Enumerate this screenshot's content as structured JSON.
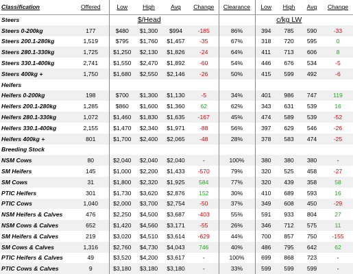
{
  "header": [
    "Classification",
    "Offered",
    "Low",
    "High",
    "Avg",
    "Change",
    "Clearance",
    "Low",
    "High",
    "Avg",
    "Change"
  ],
  "units": [
    "$/Head",
    "c/kg LW"
  ],
  "sections": [
    {
      "title": "Steers",
      "rows": [
        [
          "Steers 0-200kg",
          "177",
          "$480",
          "$1,300",
          "$994",
          "-185",
          "86%",
          "394",
          "785",
          "590",
          "-33"
        ],
        [
          "Steers 200.1-280kg",
          "1,519",
          "$795",
          "$1,760",
          "$1,457",
          "-35",
          "67%",
          "318",
          "720",
          "595",
          "0"
        ],
        [
          "Steers 280.1-330kg",
          "1,725",
          "$1,250",
          "$2,130",
          "$1,826",
          "-24",
          "64%",
          "411",
          "713",
          "606",
          "8"
        ],
        [
          "Steers 330.1-400kg",
          "2,741",
          "$1,550",
          "$2,470",
          "$1,892",
          "-60",
          "54%",
          "446",
          "676",
          "534",
          "-5"
        ],
        [
          "Steers 400kg +",
          "1,750",
          "$1,680",
          "$2,550",
          "$2,146",
          "-26",
          "50%",
          "415",
          "599",
          "492",
          "-6"
        ]
      ]
    },
    {
      "title": "Heifers",
      "rows": [
        [
          "Heifers 0-200kg",
          "198",
          "$700",
          "$1,300",
          "$1,130",
          "-5",
          "34%",
          "401",
          "986",
          "747",
          "119"
        ],
        [
          "Heifers 200.1-280kg",
          "1,285",
          "$860",
          "$1,600",
          "$1,360",
          "62",
          "62%",
          "343",
          "631",
          "539",
          "16"
        ],
        [
          "Heifers 280.1-330kg",
          "1,072",
          "$1,460",
          "$1,830",
          "$1,635",
          "-167",
          "45%",
          "474",
          "589",
          "539",
          "-52"
        ],
        [
          "Heifers 330.1-400kg",
          "2,155",
          "$1,470",
          "$2,340",
          "$1,971",
          "-88",
          "56%",
          "397",
          "629",
          "546",
          "-26"
        ],
        [
          "Heifers 400kg +",
          "801",
          "$1,700",
          "$2,400",
          "$2,065",
          "-48",
          "28%",
          "378",
          "583",
          "474",
          "-25"
        ]
      ]
    },
    {
      "title": "Breeding Stock",
      "rows": [
        [
          "NSM Cows",
          "80",
          "$2,040",
          "$2,040",
          "$2,040",
          "-",
          "100%",
          "380",
          "380",
          "380",
          "-"
        ],
        [
          "SM Heifers",
          "145",
          "$1,000",
          "$2,200",
          "$1,433",
          "-570",
          "79%",
          "320",
          "525",
          "458",
          "-27"
        ],
        [
          "SM Cows",
          "31",
          "$1,800",
          "$2,320",
          "$1,925",
          "584",
          "77%",
          "320",
          "439",
          "358",
          "58"
        ],
        [
          "PTIC Heifers",
          "301",
          "$1,730",
          "$3,620",
          "$2,876",
          "152",
          "30%",
          "410",
          "689",
          "593",
          "16"
        ],
        [
          "PTIC Cows",
          "1,040",
          "$2,000",
          "$3,700",
          "$2,754",
          "-50",
          "37%",
          "349",
          "608",
          "450",
          "-29"
        ],
        [
          "NSM Heifers & Calves",
          "476",
          "$2,250",
          "$4,500",
          "$3,687",
          "-403",
          "55%",
          "591",
          "933",
          "804",
          "27"
        ],
        [
          "NSM Cows & Calves",
          "652",
          "$1,420",
          "$4,560",
          "$3,171",
          "-55",
          "26%",
          "346",
          "712",
          "575",
          "11"
        ],
        [
          "SM Heifers & Calves",
          "219",
          "$3,020",
          "$4,510",
          "$3,614",
          "-629",
          "44%",
          "700",
          "857",
          "750",
          "-155"
        ],
        [
          "SM Cows & Calves",
          "1,316",
          "$2,760",
          "$4,730",
          "$4,043",
          "746",
          "40%",
          "486",
          "795",
          "642",
          "62"
        ],
        [
          "PTIC Heifers & Calves",
          "49",
          "$3,520",
          "$4,200",
          "$3,617",
          "-",
          "100%",
          "699",
          "868",
          "723",
          "-"
        ],
        [
          "PTIC Cows & Calves",
          "9",
          "$3,180",
          "$3,180",
          "$3,180",
          "-",
          "33%",
          "599",
          "599",
          "599",
          "-"
        ]
      ]
    }
  ]
}
